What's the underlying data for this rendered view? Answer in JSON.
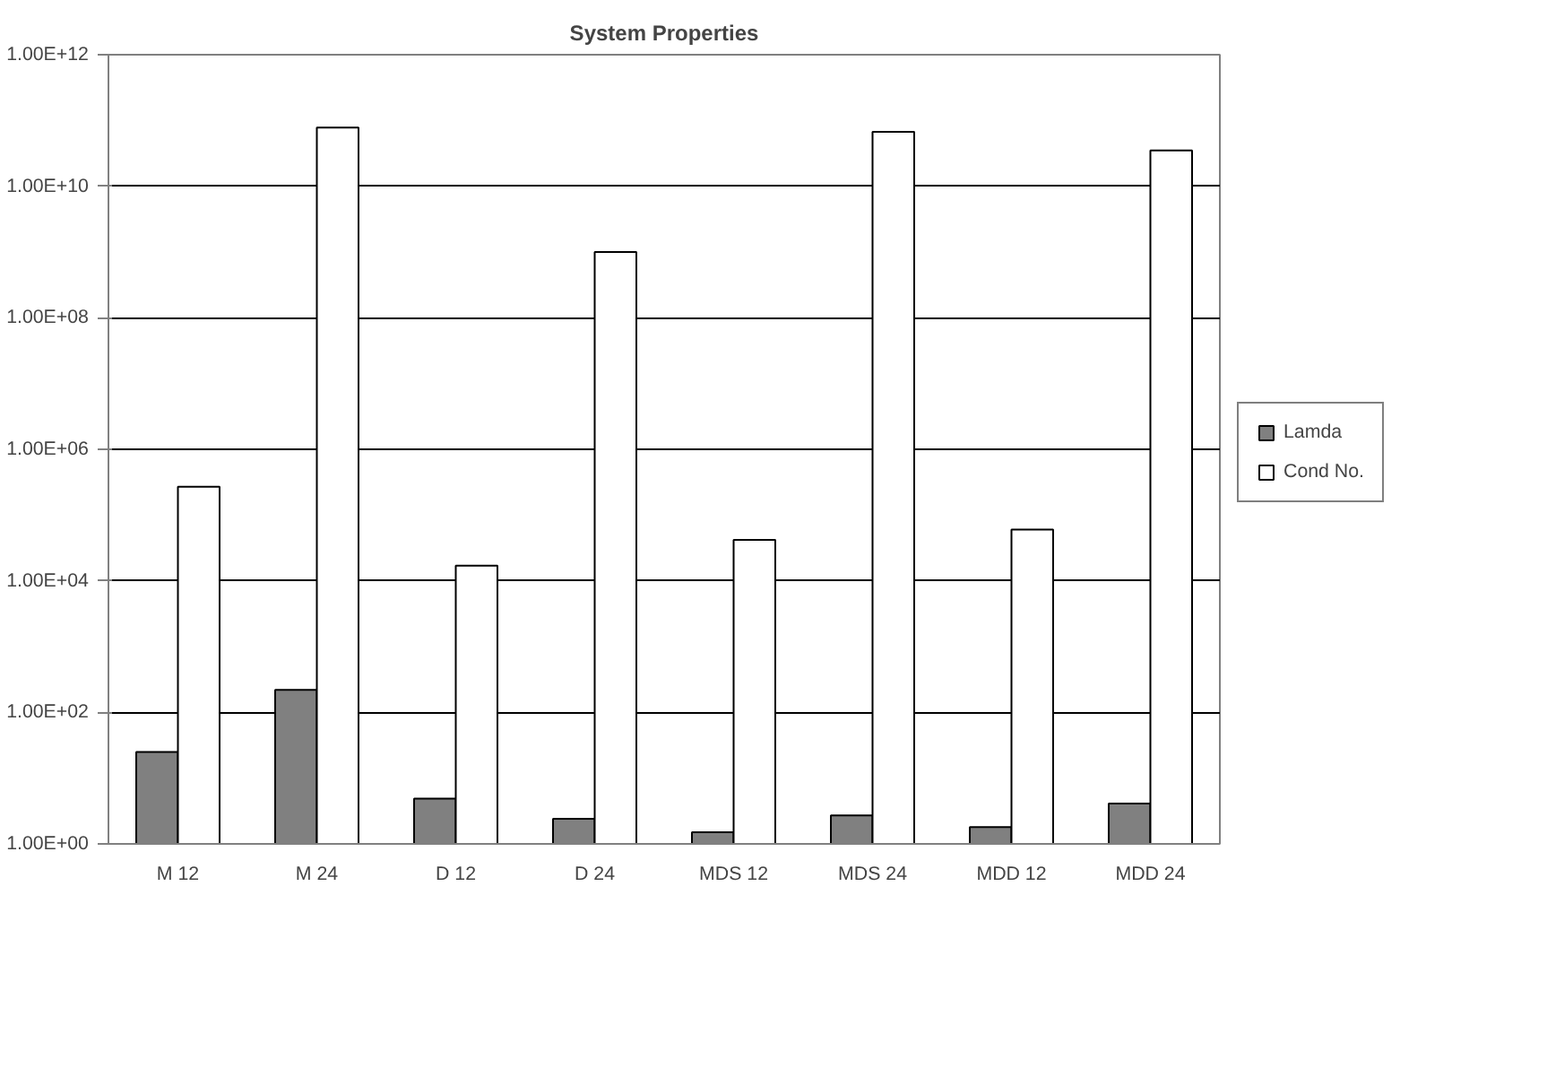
{
  "chart_data": {
    "type": "bar",
    "title": "System Properties",
    "categories": [
      "M 12",
      "M 24",
      "D 12",
      "D 24",
      "MDS 12",
      "MDS 24",
      "MDD 12",
      "MDD 24"
    ],
    "series": [
      {
        "name": "Lamda",
        "color": "#808080",
        "values": [
          25,
          220,
          4.9,
          2.4,
          1.5,
          2.7,
          1.8,
          4.1
        ]
      },
      {
        "name": "Cond No.",
        "color": "#ffffff",
        "values": [
          270000,
          78000000000,
          17000,
          1000000000,
          42000,
          67000000000,
          60000,
          35000000000
        ]
      }
    ],
    "log": "y",
    "ylim": [
      1,
      1000000000000
    ],
    "yticks": [
      {
        "value": 1,
        "label": "1.00E+00"
      },
      {
        "value": 100,
        "label": "1.00E+02"
      },
      {
        "value": 10000,
        "label": "1.00E+04"
      },
      {
        "value": 1000000,
        "label": "1.00E+06"
      },
      {
        "value": 100000000,
        "label": "1.00E+08"
      },
      {
        "value": 10000000000,
        "label": "1.00E+10"
      },
      {
        "value": 1000000000000,
        "label": "1.00E+12"
      }
    ],
    "grid": "y",
    "legend": "right"
  }
}
